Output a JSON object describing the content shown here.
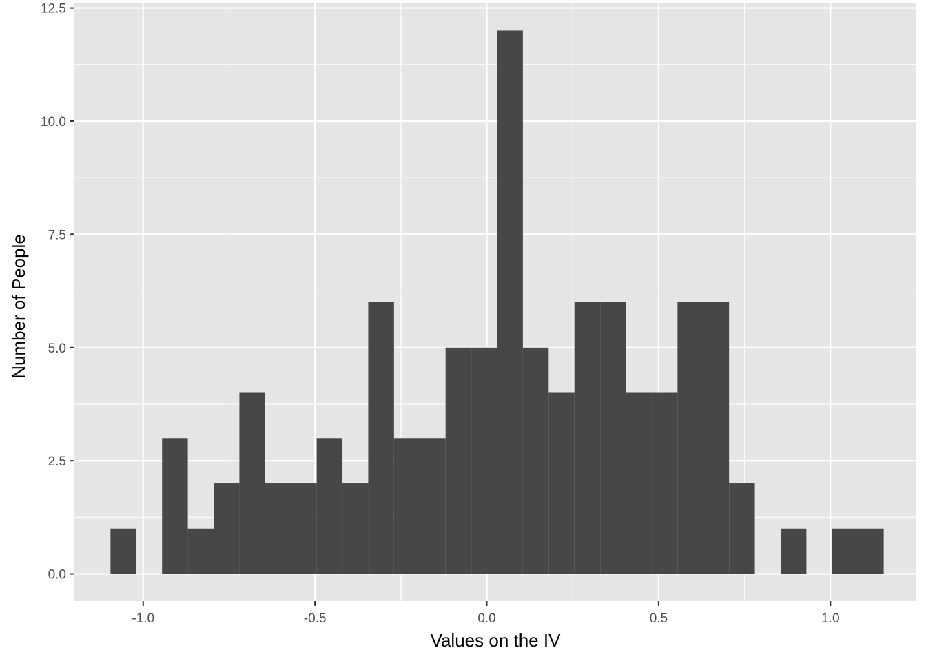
{
  "chart_data": {
    "type": "bar",
    "xlabel": "Values on the IV",
    "ylabel": "Number of People",
    "xlim": [
      -1.2,
      1.25
    ],
    "ylim": [
      -0.6,
      12.6
    ],
    "x_ticks": [
      -1.0,
      -0.5,
      0.0,
      0.5,
      1.0
    ],
    "x_tick_labels": [
      "-1.0",
      "-0.5",
      "0.0",
      "0.5",
      "1.0"
    ],
    "y_ticks": [
      0,
      2.5,
      5,
      7.5,
      10,
      12.5
    ],
    "y_tick_labels": [
      "0.0",
      "2.5",
      "5.0",
      "7.5",
      "10.0",
      "12.5"
    ],
    "grid": true,
    "colors": {
      "panel": "#e5e5e5",
      "grid": "#ffffff",
      "bar": "#474747",
      "tick_text": "#4d4d4d"
    },
    "bins": [
      {
        "x0": -1.095,
        "x1": -1.02,
        "count": 1
      },
      {
        "x0": -1.02,
        "x1": -0.945,
        "count": 0
      },
      {
        "x0": -0.945,
        "x1": -0.87,
        "count": 3
      },
      {
        "x0": -0.87,
        "x1": -0.795,
        "count": 1
      },
      {
        "x0": -0.795,
        "x1": -0.72,
        "count": 2
      },
      {
        "x0": -0.72,
        "x1": -0.645,
        "count": 4
      },
      {
        "x0": -0.645,
        "x1": -0.57,
        "count": 2
      },
      {
        "x0": -0.57,
        "x1": -0.495,
        "count": 2
      },
      {
        "x0": -0.495,
        "x1": -0.42,
        "count": 3
      },
      {
        "x0": -0.42,
        "x1": -0.345,
        "count": 2
      },
      {
        "x0": -0.345,
        "x1": -0.27,
        "count": 6
      },
      {
        "x0": -0.27,
        "x1": -0.195,
        "count": 3
      },
      {
        "x0": -0.195,
        "x1": -0.12,
        "count": 3
      },
      {
        "x0": -0.12,
        "x1": -0.045,
        "count": 5
      },
      {
        "x0": -0.045,
        "x1": 0.03,
        "count": 5
      },
      {
        "x0": 0.03,
        "x1": 0.105,
        "count": 12
      },
      {
        "x0": 0.105,
        "x1": 0.18,
        "count": 5
      },
      {
        "x0": 0.18,
        "x1": 0.255,
        "count": 4
      },
      {
        "x0": 0.255,
        "x1": 0.33,
        "count": 6
      },
      {
        "x0": 0.33,
        "x1": 0.405,
        "count": 6
      },
      {
        "x0": 0.405,
        "x1": 0.48,
        "count": 4
      },
      {
        "x0": 0.48,
        "x1": 0.555,
        "count": 4
      },
      {
        "x0": 0.555,
        "x1": 0.63,
        "count": 6
      },
      {
        "x0": 0.63,
        "x1": 0.705,
        "count": 6
      },
      {
        "x0": 0.705,
        "x1": 0.78,
        "count": 2
      },
      {
        "x0": 0.78,
        "x1": 0.855,
        "count": 0
      },
      {
        "x0": 0.855,
        "x1": 0.93,
        "count": 1
      },
      {
        "x0": 0.93,
        "x1": 1.005,
        "count": 0
      },
      {
        "x0": 1.005,
        "x1": 1.08,
        "count": 1
      },
      {
        "x0": 1.08,
        "x1": 1.155,
        "count": 1
      }
    ]
  }
}
